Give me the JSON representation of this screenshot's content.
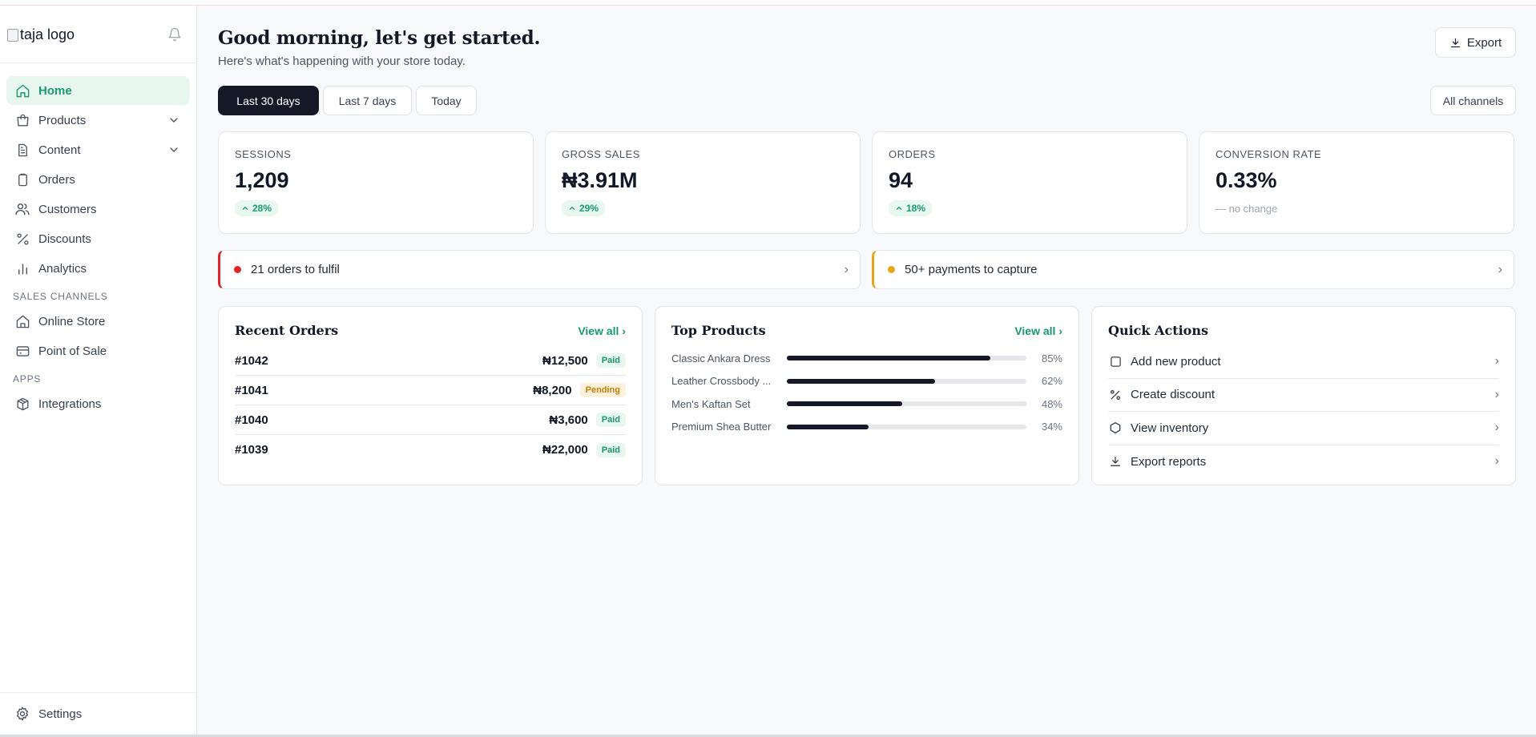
{
  "sidebar": {
    "logo_alt": "taja logo",
    "items": [
      {
        "label": "Home",
        "icon": "home-icon"
      },
      {
        "label": "Products",
        "icon": "bag-icon"
      },
      {
        "label": "Content",
        "icon": "document-icon"
      },
      {
        "label": "Orders",
        "icon": "clipboard-icon"
      },
      {
        "label": "Customers",
        "icon": "users-icon"
      },
      {
        "label": "Discounts",
        "icon": "percent-icon"
      },
      {
        "label": "Analytics",
        "icon": "bar-chart-icon"
      }
    ],
    "sales_channels_heading": "SALES CHANNELS",
    "sales_channels": [
      {
        "label": "Online Store",
        "icon": "store-icon"
      },
      {
        "label": "Point of Sale",
        "icon": "pos-icon"
      }
    ],
    "apps_heading": "APPS",
    "apps": [
      {
        "label": "Integrations",
        "icon": "cube-icon"
      }
    ],
    "settings_label": "Settings"
  },
  "header": {
    "title": "Good morning, let's get started.",
    "subtitle": "Here's what's happening with your store today.",
    "export_label": "Export"
  },
  "range": {
    "options": [
      "Last 30 days",
      "Last 7 days",
      "Today"
    ],
    "selected": "Last 30 days",
    "channels_label": "All channels"
  },
  "kpis": [
    {
      "label": "SESSIONS",
      "value": "1,209",
      "delta": "28%"
    },
    {
      "label": "GROSS SALES",
      "value": "₦3.91M",
      "delta": "29%"
    },
    {
      "label": "ORDERS",
      "value": "94",
      "delta": "18%"
    },
    {
      "label": "CONVERSION RATE",
      "value": "0.33%",
      "delta_text": "— no change"
    }
  ],
  "alerts": [
    {
      "text": "21 orders to fulfil",
      "color": "#e02424"
    },
    {
      "text": "50+ payments to capture",
      "color": "#e8a31a"
    }
  ],
  "recent_orders": {
    "title": "Recent Orders",
    "view_all": "View all ›",
    "rows": [
      {
        "id": "#1042",
        "amount": "₦12,500",
        "status": "Paid"
      },
      {
        "id": "#1041",
        "amount": "₦8,200",
        "status": "Pending"
      },
      {
        "id": "#1040",
        "amount": "₦3,600",
        "status": "Paid"
      },
      {
        "id": "#1039",
        "amount": "₦22,000",
        "status": "Paid"
      }
    ]
  },
  "top_products": {
    "title": "Top Products",
    "view_all": "View all ›",
    "rows": [
      {
        "name": "Classic Ankara Dress",
        "pct_label": "85%",
        "pct": 0.85
      },
      {
        "name": "Leather Crossbody ...",
        "pct_label": "62%",
        "pct": 0.62
      },
      {
        "name": "Men's Kaftan Set",
        "pct_label": "48%",
        "pct": 0.48
      },
      {
        "name": "Premium Shea Butter",
        "pct_label": "34%",
        "pct": 0.34
      }
    ]
  },
  "quick_actions": {
    "title": "Quick Actions",
    "items": [
      {
        "label": "Add new product",
        "icon": "square-icon"
      },
      {
        "label": "Create discount",
        "icon": "percent-icon"
      },
      {
        "label": "View inventory",
        "icon": "hexagon-icon"
      },
      {
        "label": "Export reports",
        "icon": "download-icon"
      }
    ]
  },
  "colors": {
    "accent": "#1a9a6a",
    "dark": "#141827",
    "warning": "#e8a31a",
    "danger": "#e02424"
  }
}
